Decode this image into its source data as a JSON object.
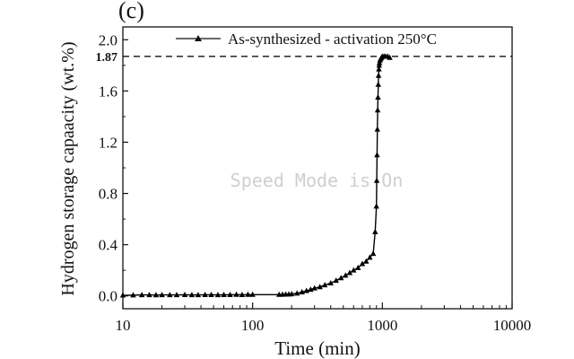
{
  "panel_label": "(c)",
  "watermark": "Speed Mode is On",
  "chart_data": {
    "type": "line",
    "xlabel": "Time (min)",
    "ylabel": "Hydrogen storage capaacity (wt.%)",
    "x_scale": "log",
    "xlim": [
      10,
      10000
    ],
    "ylim": [
      -0.1,
      2.1
    ],
    "x_ticks": [
      10,
      100,
      1000,
      10000
    ],
    "x_tick_labels": [
      "10",
      "100",
      "1000",
      "10000"
    ],
    "y_ticks": [
      0.0,
      0.4,
      0.8,
      1.2,
      1.6,
      2.0
    ],
    "y_tick_labels": [
      "0.0",
      "0.4",
      "0.8",
      "1.2",
      "1.6",
      "2.0"
    ],
    "grid": false,
    "legend_position": "top",
    "reference_line": {
      "y": 1.87,
      "label": "1.87",
      "style": "dashed"
    },
    "series": [
      {
        "name": "As-synthesized - activation 250°C",
        "marker": "triangle",
        "color": "#000000",
        "x": [
          10,
          12,
          14,
          16,
          18,
          20,
          23,
          26,
          30,
          34,
          38,
          43,
          48,
          54,
          60,
          67,
          75,
          83,
          92,
          100,
          160,
          170,
          180,
          190,
          200,
          220,
          240,
          260,
          280,
          300,
          330,
          360,
          400,
          440,
          480,
          520,
          560,
          600,
          650,
          700,
          750,
          800,
          850,
          880,
          900,
          905,
          910,
          915,
          920,
          925,
          930,
          935,
          940,
          945,
          950,
          960,
          970,
          985,
          1000,
          1030,
          1060,
          1100,
          1140
        ],
        "y": [
          0.005,
          0.006,
          0.008,
          0.008,
          0.007,
          0.008,
          0.008,
          0.008,
          0.009,
          0.008,
          0.008,
          0.009,
          0.009,
          0.008,
          0.009,
          0.009,
          0.01,
          0.009,
          0.01,
          0.01,
          0.01,
          0.011,
          0.012,
          0.013,
          0.015,
          0.02,
          0.03,
          0.04,
          0.05,
          0.06,
          0.07,
          0.085,
          0.1,
          0.12,
          0.14,
          0.16,
          0.18,
          0.2,
          0.22,
          0.25,
          0.27,
          0.3,
          0.33,
          0.5,
          0.7,
          0.9,
          1.1,
          1.3,
          1.45,
          1.55,
          1.65,
          1.72,
          1.77,
          1.8,
          1.82,
          1.84,
          1.85,
          1.86,
          1.87,
          1.87,
          1.87,
          1.87,
          1.86
        ]
      }
    ]
  }
}
